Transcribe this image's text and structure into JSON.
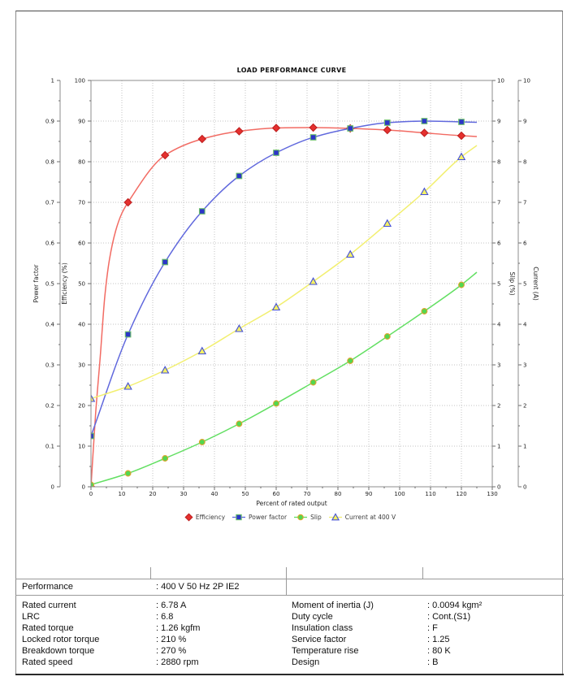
{
  "chart_data": {
    "type": "line",
    "title": "LOAD PERFORMANCE CURVE",
    "xlabel": "Percent of rated output",
    "grid": true,
    "legend_position": "bottom",
    "x_axis": {
      "min": 0,
      "max": 130,
      "tick_step": 10,
      "minor_step": 5
    },
    "axes": {
      "left": [
        {
          "id": "pf",
          "title": "Power factor",
          "min": 0,
          "max": 1,
          "tick_step": 0.1,
          "minor_step": 0.05
        },
        {
          "id": "eff",
          "title": "Efficiency (%)",
          "min": 0,
          "max": 100,
          "tick_step": 10,
          "minor_step": 5
        }
      ],
      "right": [
        {
          "id": "slip",
          "title": "Slip (%)",
          "min": 0,
          "max": 10,
          "tick_step": 1,
          "minor_step": 0.5
        },
        {
          "id": "current",
          "title": "Current (A)",
          "min": 0,
          "max": 10,
          "tick_step": 1,
          "minor_step": 0.5
        }
      ]
    },
    "series": [
      {
        "name": "Efficiency",
        "axis": "eff",
        "marker": "diamond",
        "line_color": "#f26b63",
        "marker_fill": "#e5302e",
        "marker_edge": "#bf1f1f",
        "x": [
          0,
          12,
          24,
          36,
          48,
          60,
          72,
          84,
          96,
          108,
          120
        ],
        "values": [
          0,
          70,
          81.6,
          85.6,
          87.5,
          88.3,
          88.4,
          88.2,
          87.8,
          87.1,
          86.4
        ],
        "curve_shape_points": [
          [
            1.5,
            18
          ],
          [
            3,
            32
          ],
          [
            4.5,
            47
          ],
          [
            6,
            56
          ],
          [
            8,
            63
          ],
          [
            10,
            67.3
          ]
        ],
        "line_end": [
          125,
          86.2
        ],
        "legend_stub": false
      },
      {
        "name": "Power factor",
        "axis": "pf",
        "marker": "square",
        "line_color": "#6068dd",
        "marker_fill": "#2c35c8",
        "marker_edge": "#6abf69",
        "x": [
          0,
          12,
          24,
          36,
          48,
          60,
          72,
          84,
          96,
          108,
          120
        ],
        "values": [
          0.125,
          0.375,
          0.553,
          0.678,
          0.765,
          0.822,
          0.86,
          0.882,
          0.896,
          0.9,
          0.898
        ],
        "line_end": [
          125,
          0.897
        ],
        "legend_stub": true
      },
      {
        "name": "Slip",
        "axis": "slip",
        "marker": "circle",
        "line_color": "#62df62",
        "marker_fill": "#52d74f",
        "marker_edge": "#e0a32e",
        "x": [
          0,
          12,
          24,
          36,
          48,
          60,
          72,
          84,
          96,
          108,
          120
        ],
        "values": [
          0.05,
          0.33,
          0.7,
          1.1,
          1.55,
          2.05,
          2.57,
          3.1,
          3.7,
          4.32,
          4.97
        ],
        "line_end": [
          125,
          5.28
        ],
        "legend_stub": true
      },
      {
        "name": "Current at 400 V",
        "axis": "current",
        "marker": "triangle",
        "line_color": "#f2ef70",
        "marker_fill": "#f5f163",
        "marker_edge": "#4450d8",
        "x": [
          0,
          12,
          24,
          36,
          48,
          60,
          72,
          84,
          96,
          108,
          120
        ],
        "values": [
          2.17,
          2.47,
          2.87,
          3.34,
          3.89,
          4.42,
          5.05,
          5.72,
          6.48,
          7.26,
          8.12
        ],
        "line_end": [
          125,
          8.4
        ],
        "legend_stub": true
      }
    ]
  },
  "table": {
    "performance": {
      "label": "Performance",
      "value": ": 400 V 50 Hz 2P IE2"
    },
    "left_rows": [
      {
        "label": "Rated current",
        "value": ": 6.78 A"
      },
      {
        "label": "LRC",
        "value": ": 6.8"
      },
      {
        "label": "Rated torque",
        "value": ": 1.26 kgfm"
      },
      {
        "label": "Locked rotor torque",
        "value": ": 210 %"
      },
      {
        "label": "Breakdown torque",
        "value": ": 270 %"
      },
      {
        "label": "Rated speed",
        "value": ": 2880 rpm"
      }
    ],
    "right_rows": [
      {
        "label": "Moment of inertia (J)",
        "value": ": 0.0094 kgm²"
      },
      {
        "label": "Duty cycle",
        "value": ": Cont.(S1)"
      },
      {
        "label": "Insulation class",
        "value": ": F"
      },
      {
        "label": "Service factor",
        "value": ": 1.25"
      },
      {
        "label": "Temperature rise",
        "value": ": 80 K"
      },
      {
        "label": "Design",
        "value": ": B"
      }
    ]
  }
}
